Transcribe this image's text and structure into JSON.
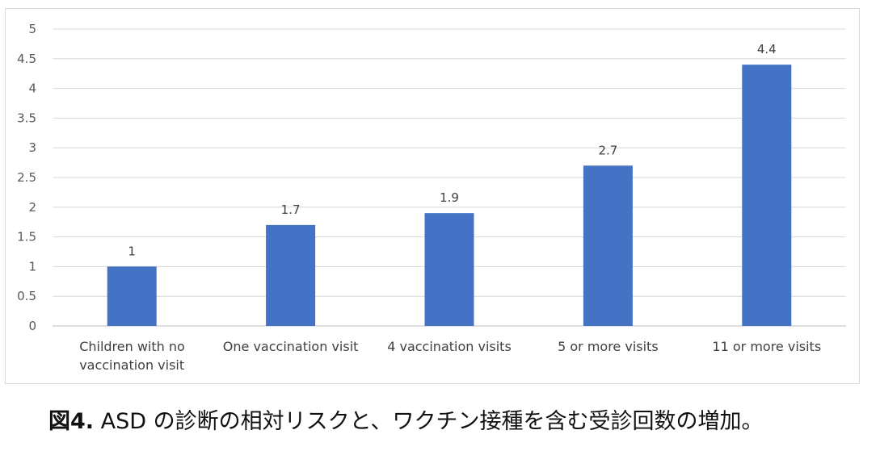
{
  "chart_data": {
    "type": "bar",
    "categories": [
      [
        "Children with no",
        "vaccination visit"
      ],
      [
        "One vaccination visit"
      ],
      [
        "4 vaccination visits"
      ],
      [
        "5 or more visits"
      ],
      [
        "11 or more visits"
      ]
    ],
    "values": [
      1,
      1.7,
      1.9,
      2.7,
      4.4
    ],
    "data_labels": [
      "1",
      "1.7",
      "1.9",
      "2.7",
      "4.4"
    ],
    "ylim": [
      0,
      5
    ],
    "yticks": [
      "0",
      "0.5",
      "1",
      "1.5",
      "2",
      "2.5",
      "3",
      "3.5",
      "4",
      "4.5",
      "5"
    ],
    "grid": true,
    "bar_color": "#4472C4",
    "title": "",
    "xlabel": "",
    "ylabel": ""
  },
  "caption": {
    "figure_label": "図4.",
    "text": " ASD の診断の相対リスクと、ワクチン接種を含む受診回数の増加。"
  }
}
